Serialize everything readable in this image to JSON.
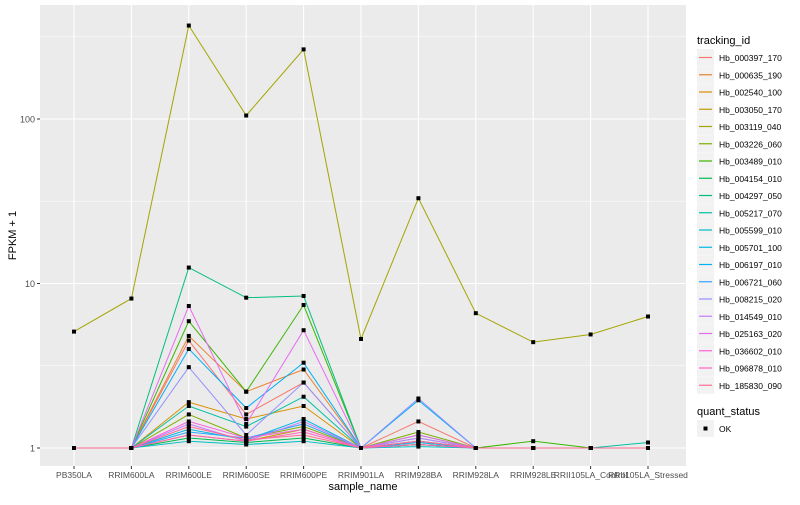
{
  "chart_data": {
    "type": "line",
    "xlabel": "sample_name",
    "ylabel": "FPKM + 1",
    "y_scale": "log10",
    "y_ticks": [
      1,
      10,
      100
    ],
    "y_tick_labels": [
      "1",
      "10",
      "100"
    ],
    "ylim": [
      1,
      380
    ],
    "grid": true,
    "background": "#EBEBEB",
    "categories": [
      "PB350LA",
      "RRIM600LA",
      "RRIM600LE",
      "RRIM600SE",
      "RRIM600PE",
      "RRIM901LA",
      "RRIM928BA",
      "RRIM928LA",
      "RRIM928LE",
      "RRII105LA_Control",
      "RRII105LA_Stressed"
    ],
    "legend": {
      "title": "tracking_id",
      "placement": "right"
    },
    "point_legend": {
      "title": "quant_status",
      "entries": [
        "OK"
      ]
    },
    "series": [
      {
        "name": "Hb_000397_170",
        "color": "#F8766D",
        "values": [
          1,
          1,
          4.5,
          1.6,
          2.5,
          1,
          1.45,
          1,
          1,
          1,
          1
        ]
      },
      {
        "name": "Hb_000635_190",
        "color": "#EA8331",
        "values": [
          1,
          1,
          4.8,
          2.2,
          3.0,
          1,
          1.1,
          1,
          1,
          1,
          1
        ]
      },
      {
        "name": "Hb_002540_100",
        "color": "#D89000",
        "values": [
          1,
          1,
          1.9,
          1.5,
          1.8,
          1,
          1.05,
          1,
          1,
          1,
          1
        ]
      },
      {
        "name": "Hb_003050_170",
        "color": "#C09B00",
        "values": [
          1,
          1,
          1.2,
          1.1,
          1.3,
          1,
          1.05,
          1,
          1,
          1,
          1
        ]
      },
      {
        "name": "Hb_003119_040",
        "color": "#A3A500",
        "values": [
          5.1,
          8.1,
          370,
          105,
          265,
          4.6,
          33,
          6.6,
          4.4,
          4.9,
          6.3
        ]
      },
      {
        "name": "Hb_003226_060",
        "color": "#7CAE00",
        "values": [
          1,
          1,
          1.6,
          1.15,
          1.35,
          1,
          1.25,
          1,
          1,
          1,
          1
        ]
      },
      {
        "name": "Hb_003489_010",
        "color": "#39B600",
        "values": [
          1,
          1,
          5.9,
          2.2,
          7.4,
          1,
          1.2,
          1,
          1.1,
          1,
          1
        ]
      },
      {
        "name": "Hb_004154_010",
        "color": "#00BB4E",
        "values": [
          1,
          1,
          1.15,
          1.08,
          1.15,
          1,
          1.05,
          1,
          1,
          1,
          1
        ]
      },
      {
        "name": "Hb_004297_050",
        "color": "#00BF7D",
        "values": [
          1,
          1,
          12.5,
          8.2,
          8.4,
          1,
          1.1,
          1,
          1,
          1,
          1
        ]
      },
      {
        "name": "Hb_005217_070",
        "color": "#00C1A3",
        "values": [
          1,
          1,
          1.8,
          1.35,
          2.05,
          1,
          1.15,
          1,
          1,
          1,
          1.08
        ]
      },
      {
        "name": "Hb_005599_010",
        "color": "#00BFC4",
        "values": [
          1,
          1,
          1.1,
          1.05,
          1.1,
          1,
          1.02,
          1,
          1,
          1,
          1
        ]
      },
      {
        "name": "Hb_005701_100",
        "color": "#00BAE0",
        "values": [
          1,
          1,
          1.3,
          1.12,
          1.5,
          1,
          1.08,
          1,
          1,
          1,
          1
        ]
      },
      {
        "name": "Hb_006197_010",
        "color": "#00B0F6",
        "values": [
          1,
          1,
          4.0,
          1.75,
          3.3,
          1,
          1.95,
          1,
          1,
          1,
          1
        ]
      },
      {
        "name": "Hb_006721_060",
        "color": "#35A2FF",
        "values": [
          1,
          1,
          1.25,
          1.15,
          1.4,
          1,
          1.1,
          1,
          1,
          1,
          1
        ]
      },
      {
        "name": "Hb_008215_020",
        "color": "#9590FF",
        "values": [
          1,
          1,
          3.1,
          1.2,
          2.5,
          1,
          2.0,
          1,
          1,
          1,
          1
        ]
      },
      {
        "name": "Hb_014549_010",
        "color": "#C77CFF",
        "values": [
          1,
          1,
          1.4,
          1.1,
          1.45,
          1,
          1.15,
          1,
          1,
          1,
          1
        ]
      },
      {
        "name": "Hb_025163_020",
        "color": "#E76BF3",
        "values": [
          1,
          1,
          7.3,
          1.4,
          5.2,
          1,
          1.2,
          1,
          1,
          1,
          1
        ]
      },
      {
        "name": "Hb_036602_010",
        "color": "#FA62DB",
        "values": [
          1,
          1,
          1.45,
          1.15,
          1.3,
          1,
          1.1,
          1,
          1,
          1,
          1
        ]
      },
      {
        "name": "Hb_096878_010",
        "color": "#FF62BC",
        "values": [
          1,
          1,
          1.2,
          1.1,
          1.25,
          1,
          1.05,
          1,
          1,
          1,
          1
        ]
      },
      {
        "name": "Hb_185830_090",
        "color": "#FF6C91",
        "values": [
          1,
          1,
          1.35,
          1.12,
          1.2,
          1,
          1.1,
          1,
          1,
          1,
          1
        ]
      }
    ]
  }
}
